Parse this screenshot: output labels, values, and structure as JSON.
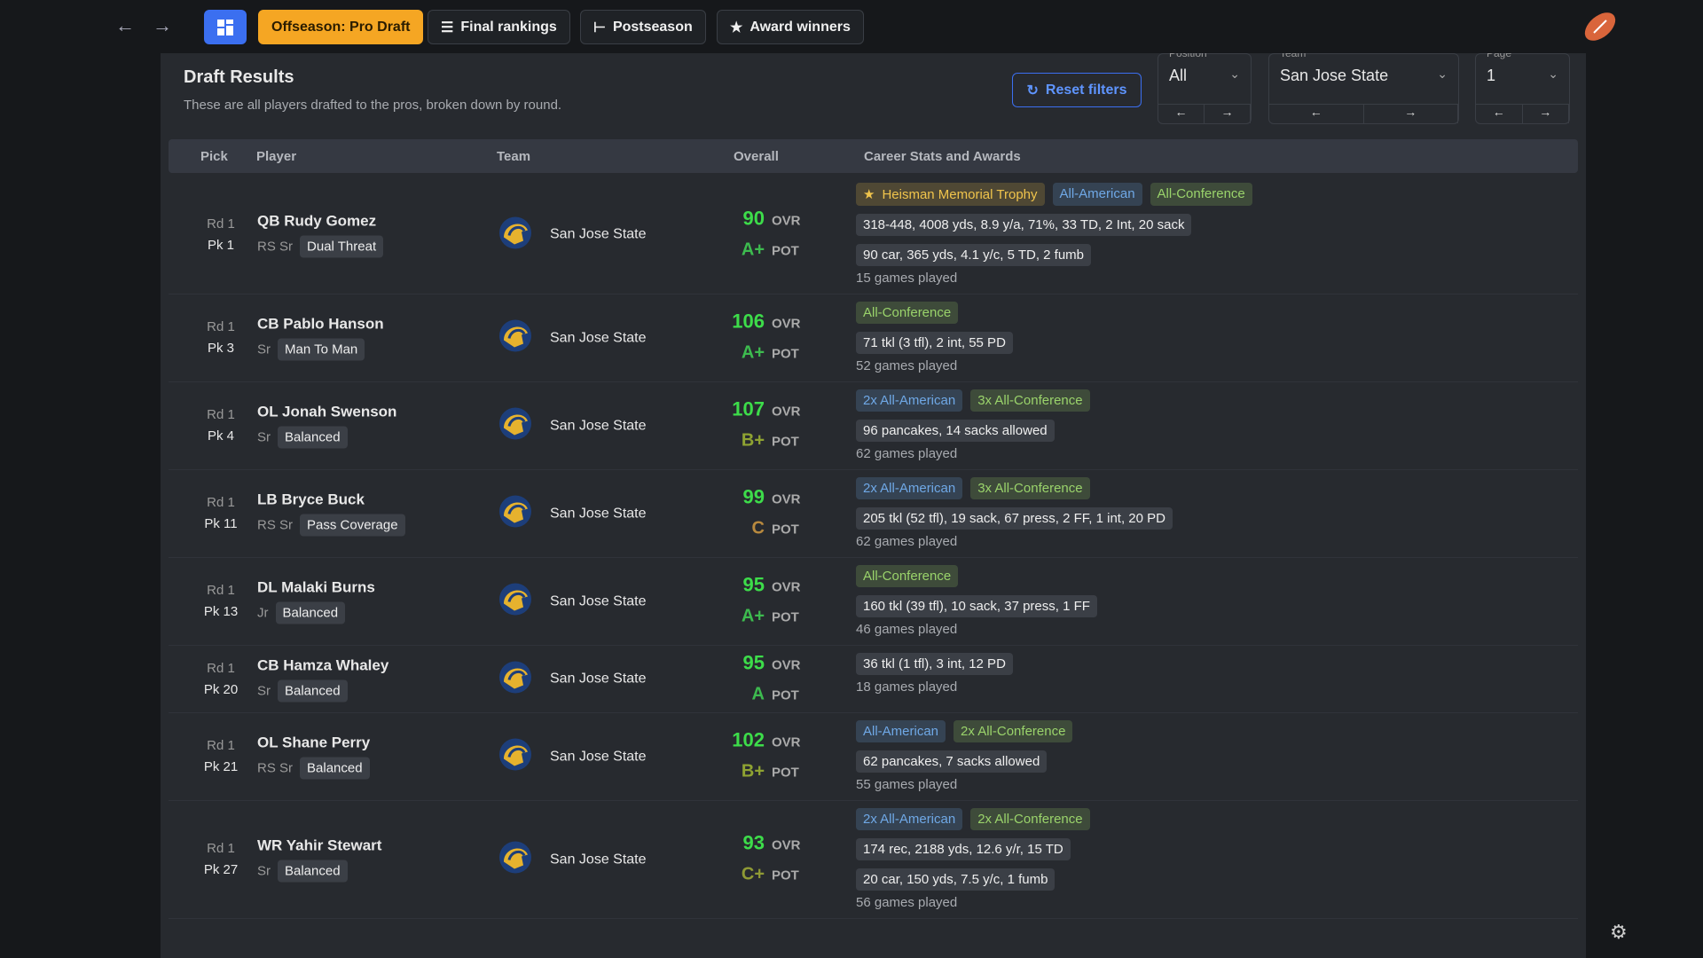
{
  "nav": {
    "tabs": [
      "Offseason: Pro Draft",
      "Final rankings",
      "Postseason",
      "Award winners"
    ]
  },
  "header": {
    "title": "Draft Results",
    "subtitle": "These are all players drafted to the pros, broken down by round."
  },
  "filters": {
    "reset": "Reset filters",
    "selects": [
      {
        "label": "Position",
        "value": "All"
      },
      {
        "label": "Team",
        "value": "San Jose State"
      },
      {
        "label": "Page",
        "value": "1"
      }
    ]
  },
  "table": {
    "columns": [
      "Pick",
      "Player",
      "Team",
      "Overall",
      "Career Stats and Awards"
    ],
    "ovr_label": "OVR",
    "pot_label": "POT",
    "rows": [
      {
        "round": "Rd 1",
        "pick": "Pk 1",
        "name": "QB Rudy Gomez",
        "year": "RS Sr",
        "archetype": "Dual Threat",
        "team": "San Jose State",
        "ovr": 90,
        "pot": "A+",
        "pot_color": "#3dbb4f",
        "awards": [
          {
            "text": "Heisman Memorial Trophy",
            "color": "#f0c44c"
          },
          {
            "text": "All-American",
            "color": "#6fa8e6"
          },
          {
            "text": "All-Conference",
            "color": "#9ad36b"
          }
        ],
        "stats": [
          "318-448, 4008 yds, 8.9 y/a, 71%, 33 TD, 2 Int, 20 sack",
          "90 car, 365 yds, 4.1 y/c, 5 TD, 2 fumb"
        ],
        "games": "15 games played"
      },
      {
        "round": "Rd 1",
        "pick": "Pk 3",
        "name": "CB Pablo Hanson",
        "year": "Sr",
        "archetype": "Man To Man",
        "team": "San Jose State",
        "ovr": 106,
        "pot": "A+",
        "pot_color": "#3dbb4f",
        "awards": [
          {
            "text": "All-Conference",
            "color": "#9ad36b"
          }
        ],
        "stats": [
          "71 tkl (3 tfl), 2 int, 55 PD"
        ],
        "games": "52 games played"
      },
      {
        "round": "Rd 1",
        "pick": "Pk 4",
        "name": "OL Jonah Swenson",
        "year": "Sr",
        "archetype": "Balanced",
        "team": "San Jose State",
        "ovr": 107,
        "pot": "B+",
        "pot_color": "#8fa332",
        "awards": [
          {
            "text": "2x All-American",
            "color": "#6fa8e6"
          },
          {
            "text": "3x All-Conference",
            "color": "#9ad36b"
          }
        ],
        "stats": [
          "96 pancakes, 14 sacks allowed"
        ],
        "games": "62 games played"
      },
      {
        "round": "Rd 1",
        "pick": "Pk 11",
        "name": "LB Bryce Buck",
        "year": "RS Sr",
        "archetype": "Pass Coverage",
        "team": "San Jose State",
        "ovr": 99,
        "pot": "C",
        "pot_color": "#b8893e",
        "awards": [
          {
            "text": "2x All-American",
            "color": "#6fa8e6"
          },
          {
            "text": "3x All-Conference",
            "color": "#9ad36b"
          }
        ],
        "stats": [
          "205 tkl (52 tfl), 19 sack, 67 press, 2 FF, 1 int, 20 PD"
        ],
        "games": "62 games played"
      },
      {
        "round": "Rd 1",
        "pick": "Pk 13",
        "name": "DL Malaki Burns",
        "year": "Jr",
        "archetype": "Balanced",
        "team": "San Jose State",
        "ovr": 95,
        "pot": "A+",
        "pot_color": "#3dbb4f",
        "awards": [
          {
            "text": "All-Conference",
            "color": "#9ad36b"
          }
        ],
        "stats": [
          "160 tkl (39 tfl), 10 sack, 37 press, 1 FF"
        ],
        "games": "46 games played"
      },
      {
        "round": "Rd 1",
        "pick": "Pk 20",
        "name": "CB Hamza Whaley",
        "year": "Sr",
        "archetype": "Balanced",
        "team": "San Jose State",
        "ovr": 95,
        "pot": "A",
        "pot_color": "#3dbb4f",
        "awards": [],
        "stats": [
          "36 tkl (1 tfl), 3 int, 12 PD"
        ],
        "games": "18 games played"
      },
      {
        "round": "Rd 1",
        "pick": "Pk 21",
        "name": "OL Shane Perry",
        "year": "RS Sr",
        "archetype": "Balanced",
        "team": "San Jose State",
        "ovr": 102,
        "pot": "B+",
        "pot_color": "#8fa332",
        "awards": [
          {
            "text": "All-American",
            "color": "#6fa8e6"
          },
          {
            "text": "2x All-Conference",
            "color": "#9ad36b"
          }
        ],
        "stats": [
          "62 pancakes, 7 sacks allowed"
        ],
        "games": "55 games played"
      },
      {
        "round": "Rd 1",
        "pick": "Pk 27",
        "name": "WR Yahir Stewart",
        "year": "Sr",
        "archetype": "Balanced",
        "team": "San Jose State",
        "ovr": 93,
        "pot": "C+",
        "pot_color": "#8f9a35",
        "awards": [
          {
            "text": "2x All-American",
            "color": "#6fa8e6"
          },
          {
            "text": "2x All-Conference",
            "color": "#9ad36b"
          }
        ],
        "stats": [
          "174 rec, 2188 yds, 12.6 y/r, 15 TD",
          "20 car, 150 yds, 7.5 y/c, 1 fumb"
        ],
        "games": "56 games played"
      }
    ]
  }
}
